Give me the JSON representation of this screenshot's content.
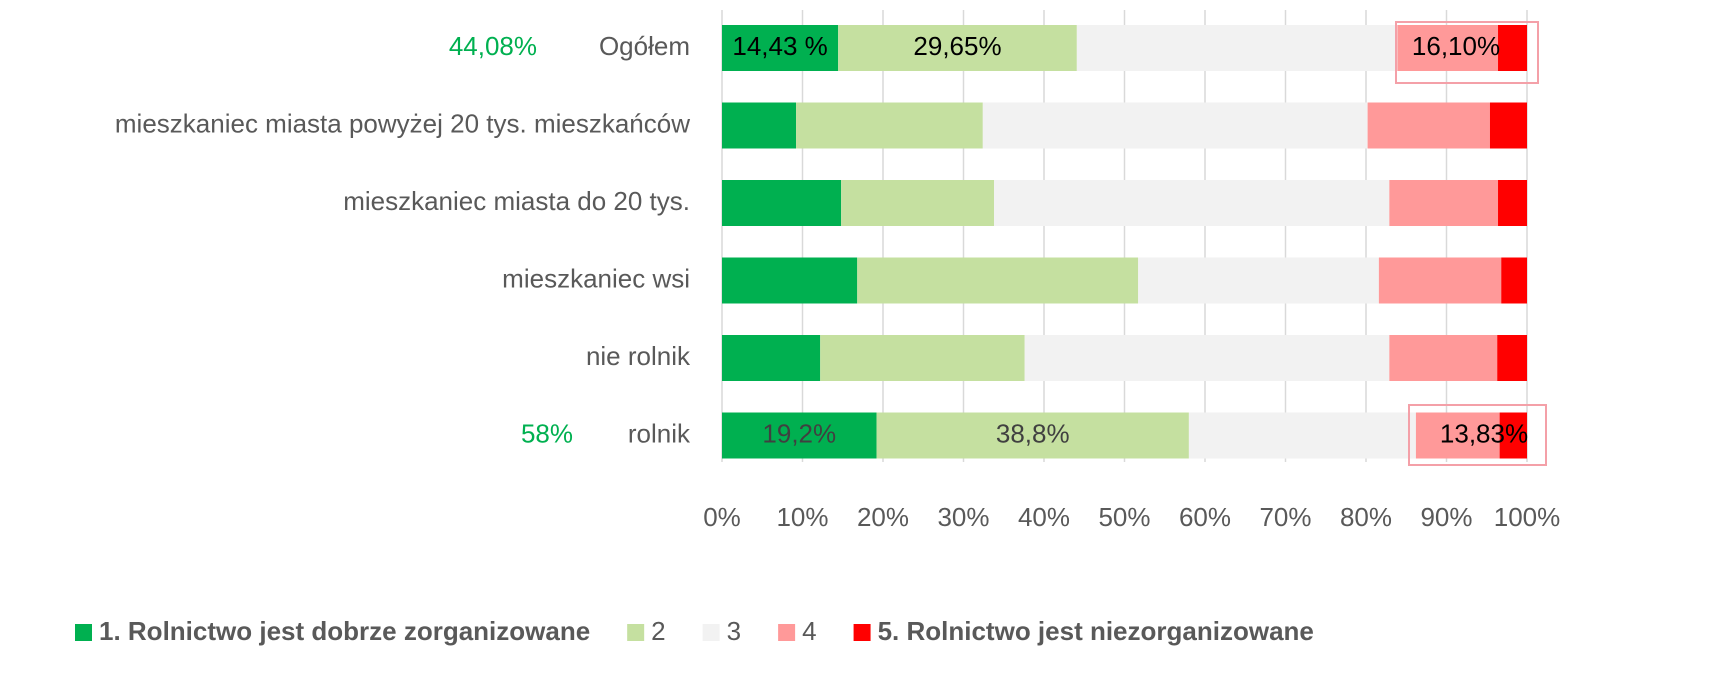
{
  "chart_data": {
    "type": "stacked_barh",
    "categories": [
      "Ogółem",
      "mieszkaniec miasta powyżej 20 tys. mieszkańców",
      "mieszkaniec miasta do 20 tys.",
      "mieszkaniec wsi",
      "nie rolnik",
      "rolnik"
    ],
    "series": [
      {
        "name": "1. Rolnictwo jest dobrze zorganizowane",
        "color": "#00b050",
        "values": [
          14.43,
          9.2,
          14.8,
          16.8,
          12.2,
          19.2
        ],
        "value_labels": [
          "14,43 %",
          null,
          null,
          null,
          null,
          "19,2%"
        ]
      },
      {
        "name": "2",
        "color": "#c5e0a0",
        "values": [
          29.65,
          23.2,
          19.0,
          34.9,
          25.4,
          38.8
        ],
        "value_labels": [
          "29,65%",
          null,
          null,
          null,
          null,
          "38,8%"
        ]
      },
      {
        "name": "3",
        "color": "#f2f2f2",
        "values": [
          39.82,
          47.8,
          49.1,
          29.9,
          45.3,
          28.2
        ]
      },
      {
        "name": "4",
        "color": "#ff9999",
        "values": [
          12.5,
          15.2,
          13.5,
          15.2,
          13.4,
          10.4
        ]
      },
      {
        "name": "5. Rolnictwo jest niezorganizowane",
        "color": "#ff0000",
        "values": [
          3.6,
          4.6,
          3.6,
          3.2,
          3.7,
          3.4
        ]
      }
    ],
    "annotations": [
      "44,08%",
      "58%",
      "16,10%",
      "13,83%"
    ],
    "xlim": [
      0,
      100
    ],
    "xticks": [
      {
        "value": 0,
        "label": "0%"
      },
      {
        "value": 10,
        "label": "10%"
      },
      {
        "value": 20,
        "label": "20%"
      },
      {
        "value": 30,
        "label": "30%"
      },
      {
        "value": 40,
        "label": "40%"
      },
      {
        "value": 50,
        "label": "50%"
      },
      {
        "value": 60,
        "label": "60%"
      },
      {
        "value": 70,
        "label": "70%"
      },
      {
        "value": 80,
        "label": "80%"
      },
      {
        "value": 90,
        "label": "90%"
      },
      {
        "value": 100,
        "label": "100%"
      }
    ],
    "grid": true,
    "legend": "bottom"
  }
}
